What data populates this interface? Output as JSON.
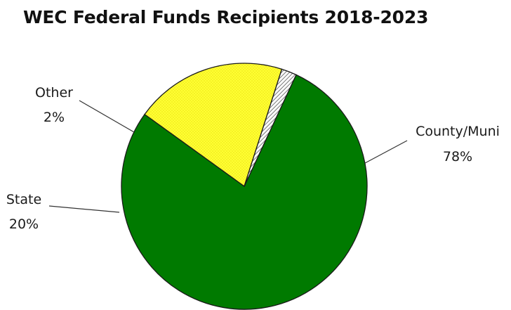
{
  "chart_data": {
    "type": "pie",
    "title": "WEC Federal Funds Recipients 2018-2023",
    "slices": [
      {
        "name": "County/Muni",
        "value": 78,
        "label": "78%",
        "color": "#007a00",
        "pattern": "solid"
      },
      {
        "name": "State",
        "value": 20,
        "label": "20%",
        "color": "#ffff33",
        "pattern": "dotted"
      },
      {
        "name": "Other",
        "value": 2,
        "label": "2%",
        "color": "#ffffff",
        "pattern": "hatched"
      }
    ],
    "legend": "none"
  }
}
